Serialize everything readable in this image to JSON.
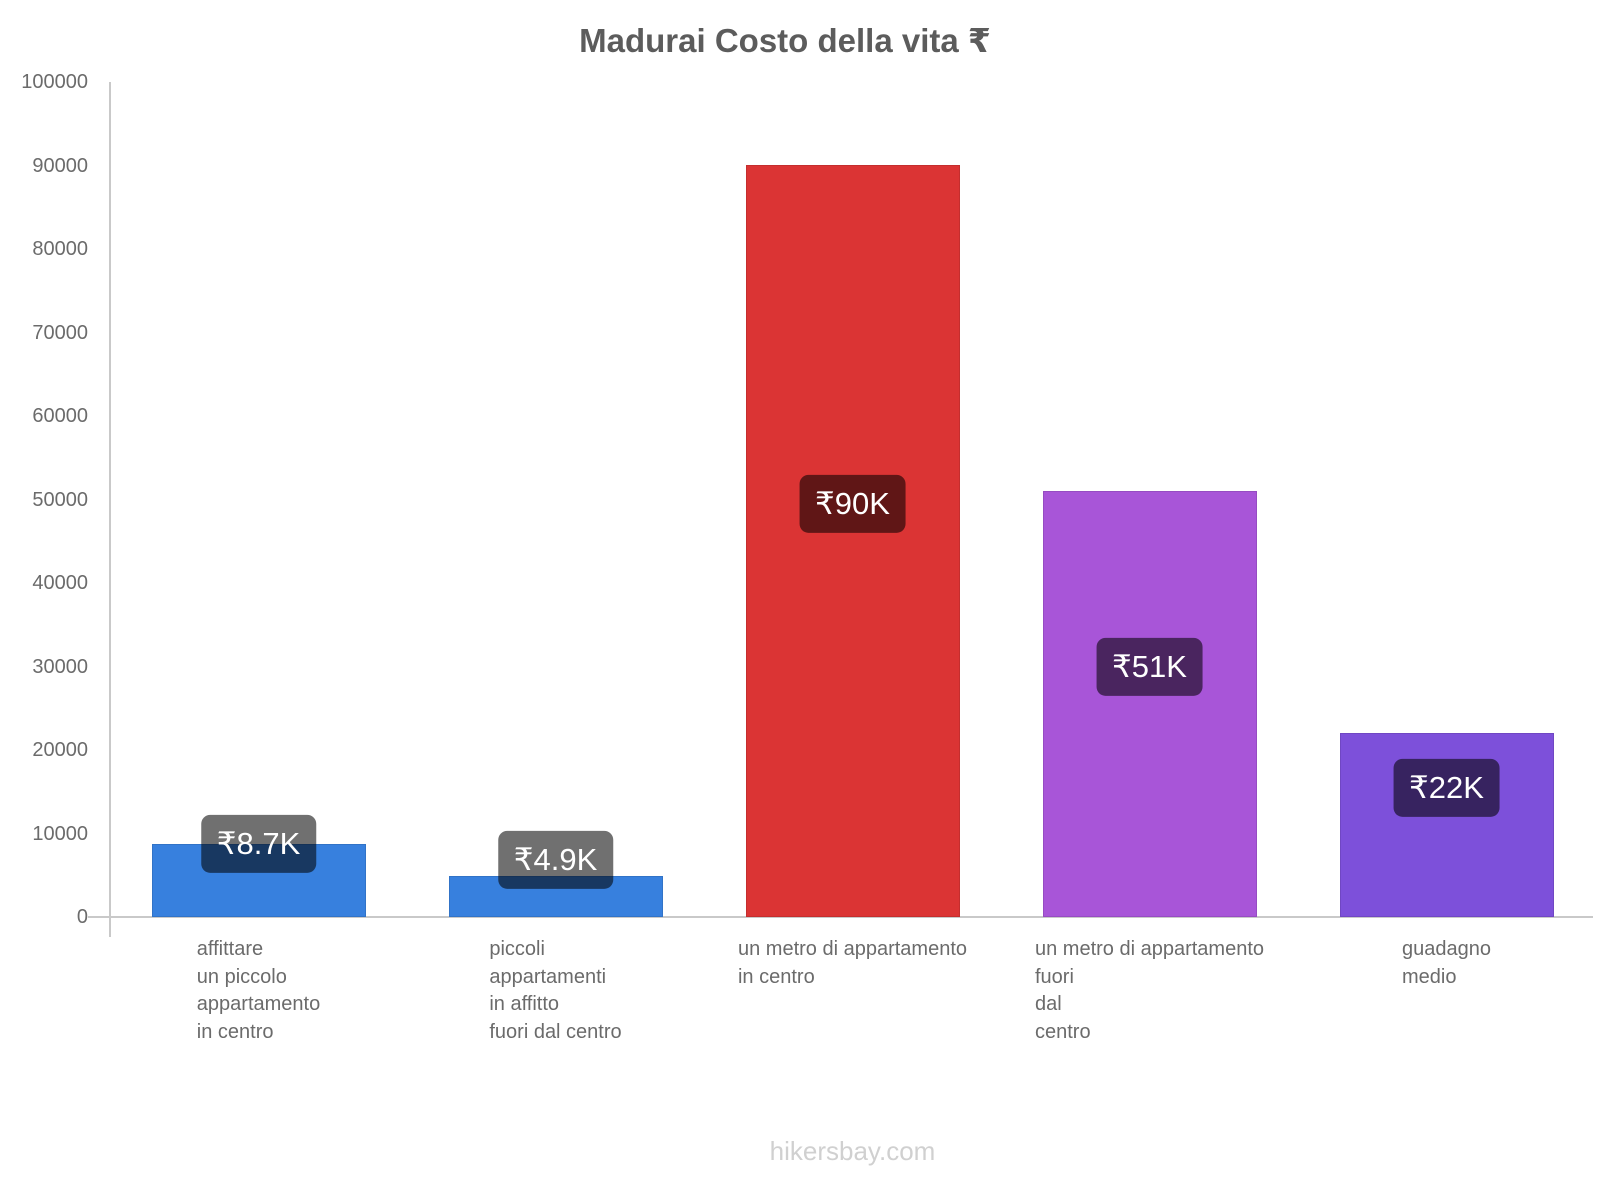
{
  "title": "Madurai Costo della vita ₹",
  "footer": "hikersbay.com",
  "colors": {
    "background": "#ffffff",
    "bar_blue": "#3780DE",
    "bar_red": "#DB3434",
    "bar_purple": "#A855D8",
    "bar_violet": "#7D50DA",
    "badge_bg": "rgba(0,0,0,0.56)",
    "badge_text": "#ffffff",
    "axis_line": "#C9C9C9",
    "tick_text": "#6B6B6B",
    "title_text": "#5C5C5C",
    "watermark_text": "#D0D0D0"
  },
  "chart_data": {
    "type": "bar",
    "title": "Madurai Costo della vita ₹",
    "currency": "₹",
    "categories": [
      "affittare un piccolo appartamento in centro",
      "piccoli appartamenti in affitto fuori dal centro",
      "un metro di appartamento in centro",
      "un metro di appartamento fuori dal centro",
      "guadagno medio"
    ],
    "categories_lines": [
      [
        "affittare",
        "un piccolo",
        "appartamento",
        "in centro"
      ],
      [
        "piccoli",
        "appartamenti",
        "in affitto",
        "fuori dal centro"
      ],
      [
        "un metro di appartamento",
        "in centro"
      ],
      [
        "un metro di appartamento",
        "fuori",
        "dal",
        "centro"
      ],
      [
        "guadagno",
        "medio"
      ]
    ],
    "values": [
      8700,
      4900,
      90000,
      51000,
      22000
    ],
    "value_labels": [
      "₹8.7K",
      "₹4.9K",
      "₹90K",
      "₹51K",
      "₹22K"
    ],
    "bar_colors": [
      "#3780DE",
      "#3780DE",
      "#DB3434",
      "#A855D8",
      "#7D50DA"
    ],
    "xlabel": "",
    "ylabel": "",
    "ylim": [
      0,
      100000
    ],
    "yticks": [
      0,
      10000,
      20000,
      30000,
      40000,
      50000,
      60000,
      70000,
      80000,
      90000,
      100000
    ],
    "grid": false,
    "legend": "none"
  }
}
